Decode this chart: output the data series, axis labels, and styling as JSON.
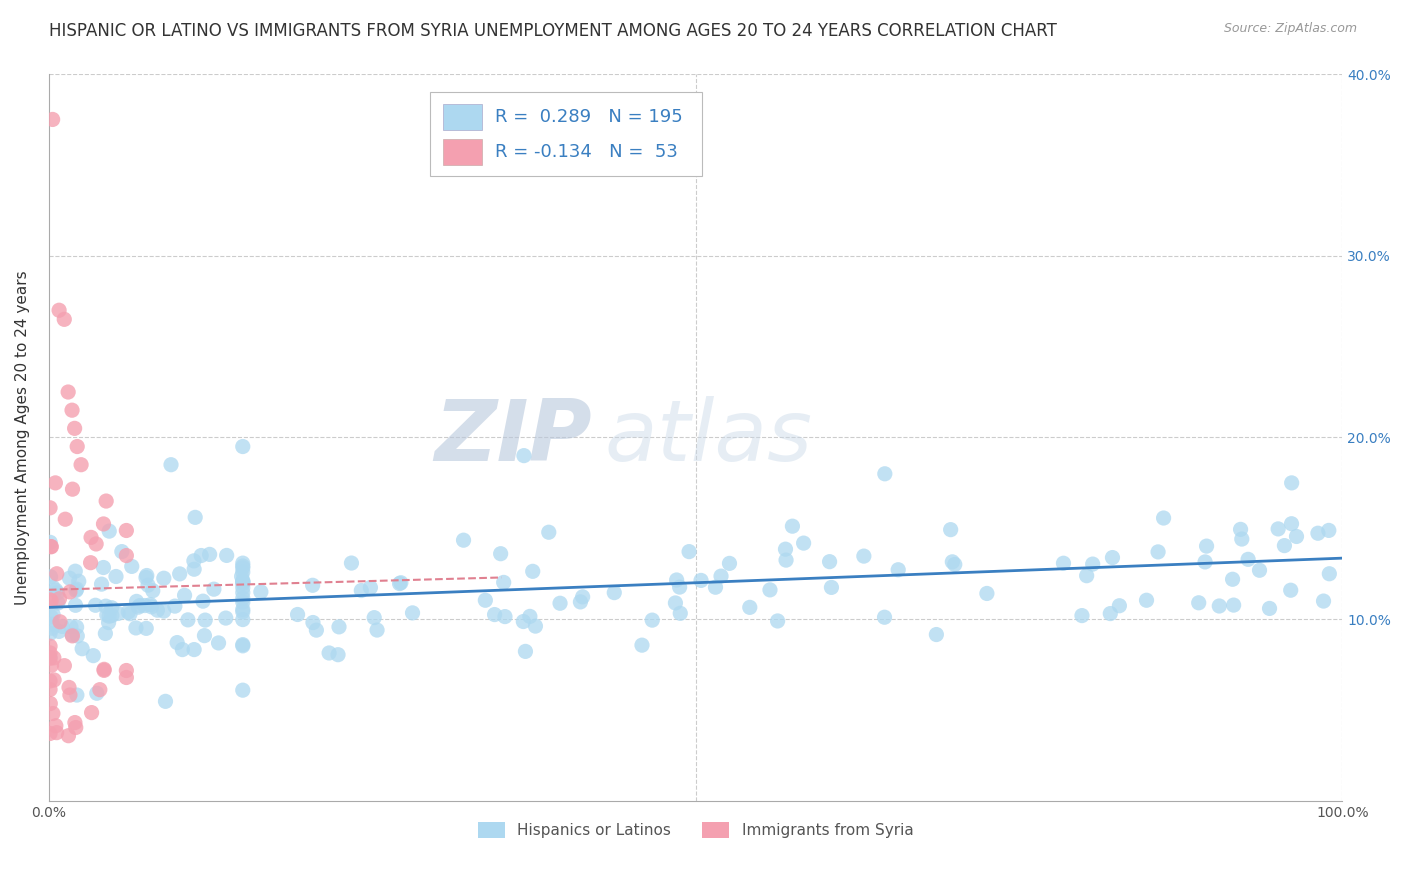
{
  "title": "HISPANIC OR LATINO VS IMMIGRANTS FROM SYRIA UNEMPLOYMENT AMONG AGES 20 TO 24 YEARS CORRELATION CHART",
  "source": "Source: ZipAtlas.com",
  "ylabel": "Unemployment Among Ages 20 to 24 years",
  "xlim": [
    0,
    1.0
  ],
  "ylim": [
    0,
    0.4
  ],
  "xticks": [
    0.0,
    0.1,
    0.2,
    0.3,
    0.4,
    0.5,
    0.6,
    0.7,
    0.8,
    0.9,
    1.0
  ],
  "xtick_labels": [
    "0.0%",
    "",
    "",
    "",
    "",
    "",
    "",
    "",
    "",
    "",
    "100.0%"
  ],
  "yticks": [
    0.0,
    0.1,
    0.2,
    0.3,
    0.4
  ],
  "ytick_labels_right": [
    "",
    "10.0%",
    "20.0%",
    "30.0%",
    "40.0%"
  ],
  "blue_color": "#ADD8F0",
  "pink_color": "#F4A0B0",
  "blue_line_color": "#3A7FC1",
  "pink_line_color": "#E08090",
  "watermark_zip": "ZIP",
  "watermark_atlas": "atlas",
  "R_blue": 0.289,
  "N_blue": 195,
  "R_pink": -0.134,
  "N_pink": 53,
  "background_color": "#FFFFFF",
  "title_fontsize": 12,
  "label_fontsize": 11,
  "tick_fontsize": 10,
  "legend_fontsize": 13
}
